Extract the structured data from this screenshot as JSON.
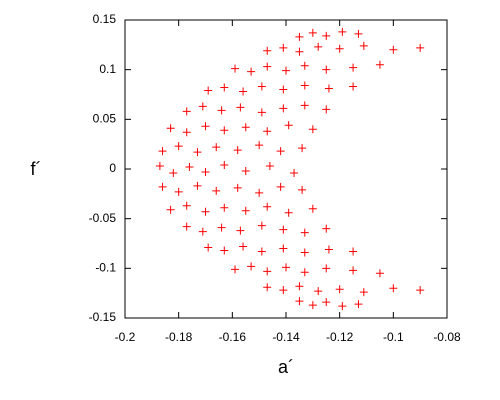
{
  "chart_data": {
    "type": "scatter",
    "xlabel": "a´",
    "ylabel": "f´",
    "color": "#ff0000",
    "marker": "+",
    "xlim": [
      -0.2,
      -0.08
    ],
    "xticks": [
      -0.2,
      -0.18,
      -0.16,
      -0.14,
      -0.12,
      -0.1,
      -0.08
    ],
    "ylim": [
      -0.15,
      0.15
    ],
    "yticks": [
      -0.15,
      -0.1,
      -0.05,
      0,
      0.05,
      0.1,
      0.15
    ],
    "x": [
      -0.187,
      -0.182,
      -0.176,
      -0.17,
      -0.163,
      -0.155,
      -0.146,
      -0.137,
      -0.186,
      -0.18,
      -0.173,
      -0.166,
      -0.158,
      -0.15,
      -0.142,
      -0.134,
      -0.186,
      -0.18,
      -0.173,
      -0.166,
      -0.158,
      -0.15,
      -0.142,
      -0.134,
      -0.183,
      -0.177,
      -0.17,
      -0.163,
      -0.155,
      -0.147,
      -0.139,
      -0.13,
      -0.183,
      -0.177,
      -0.17,
      -0.163,
      -0.155,
      -0.147,
      -0.139,
      -0.13,
      -0.177,
      -0.171,
      -0.164,
      -0.157,
      -0.149,
      -0.141,
      -0.133,
      -0.125,
      -0.177,
      -0.171,
      -0.164,
      -0.157,
      -0.149,
      -0.141,
      -0.133,
      -0.125,
      -0.169,
      -0.163,
      -0.156,
      -0.149,
      -0.141,
      -0.133,
      -0.124,
      -0.115,
      -0.169,
      -0.163,
      -0.156,
      -0.149,
      -0.141,
      -0.133,
      -0.124,
      -0.115,
      -0.159,
      -0.153,
      -0.147,
      -0.14,
      -0.133,
      -0.125,
      -0.115,
      -0.105,
      -0.159,
      -0.153,
      -0.147,
      -0.14,
      -0.133,
      -0.125,
      -0.115,
      -0.105,
      -0.147,
      -0.141,
      -0.135,
      -0.128,
      -0.12,
      -0.111,
      -0.1,
      -0.09,
      -0.147,
      -0.141,
      -0.135,
      -0.128,
      -0.12,
      -0.111,
      -0.1,
      -0.09,
      -0.135,
      -0.13,
      -0.125,
      -0.119,
      -0.113,
      -0.135,
      -0.13,
      -0.125,
      -0.119,
      -0.113
    ],
    "values": [
      0.003,
      -0.004,
      0.002,
      -0.003,
      0.004,
      -0.002,
      0.003,
      -0.004,
      0.018,
      0.023,
      0.017,
      0.022,
      0.019,
      0.024,
      0.018,
      0.021,
      -0.018,
      -0.023,
      -0.017,
      -0.022,
      -0.019,
      -0.024,
      -0.018,
      -0.021,
      0.041,
      0.037,
      0.043,
      0.039,
      0.042,
      0.038,
      0.044,
      0.04,
      -0.041,
      -0.037,
      -0.043,
      -0.039,
      -0.042,
      -0.038,
      -0.044,
      -0.04,
      0.058,
      0.063,
      0.059,
      0.062,
      0.057,
      0.061,
      0.064,
      0.06,
      -0.058,
      -0.063,
      -0.059,
      -0.062,
      -0.057,
      -0.061,
      -0.064,
      -0.06,
      0.079,
      0.082,
      0.078,
      0.083,
      0.08,
      0.084,
      0.081,
      0.083,
      -0.079,
      -0.082,
      -0.078,
      -0.083,
      -0.08,
      -0.084,
      -0.081,
      -0.083,
      0.101,
      0.098,
      0.103,
      0.099,
      0.104,
      0.1,
      0.102,
      0.105,
      -0.101,
      -0.098,
      -0.103,
      -0.099,
      -0.104,
      -0.1,
      -0.102,
      -0.105,
      0.119,
      0.122,
      0.118,
      0.123,
      0.121,
      0.124,
      0.12,
      0.122,
      -0.119,
      -0.122,
      -0.118,
      -0.123,
      -0.121,
      -0.124,
      -0.12,
      -0.122,
      0.133,
      0.137,
      0.134,
      0.138,
      0.136,
      -0.133,
      -0.137,
      -0.134,
      -0.138,
      -0.136
    ]
  }
}
